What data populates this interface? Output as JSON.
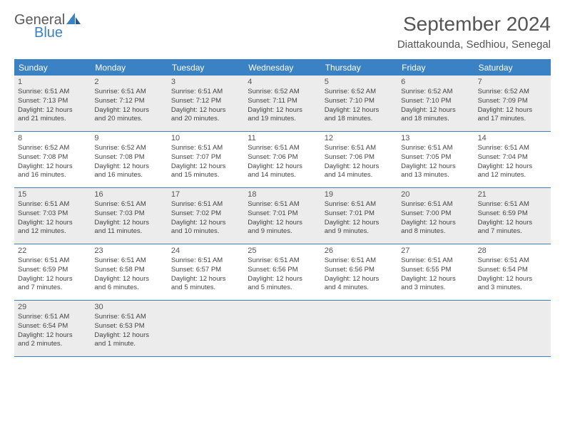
{
  "logo": {
    "general": "General",
    "blue": "Blue"
  },
  "title": "September 2024",
  "location": "Diattakounda, Sedhiou, Senegal",
  "colors": {
    "header_bg": "#3b82c4",
    "header_text": "#ffffff",
    "shade_bg": "#ececec",
    "text": "#555555",
    "border": "#3b82c4"
  },
  "day_names": [
    "Sunday",
    "Monday",
    "Tuesday",
    "Wednesday",
    "Thursday",
    "Friday",
    "Saturday"
  ],
  "weeks": [
    {
      "shaded": true,
      "days": [
        {
          "n": "1",
          "sr": "Sunrise: 6:51 AM",
          "ss": "Sunset: 7:13 PM",
          "d1": "Daylight: 12 hours",
          "d2": "and 21 minutes."
        },
        {
          "n": "2",
          "sr": "Sunrise: 6:51 AM",
          "ss": "Sunset: 7:12 PM",
          "d1": "Daylight: 12 hours",
          "d2": "and 20 minutes."
        },
        {
          "n": "3",
          "sr": "Sunrise: 6:51 AM",
          "ss": "Sunset: 7:12 PM",
          "d1": "Daylight: 12 hours",
          "d2": "and 20 minutes."
        },
        {
          "n": "4",
          "sr": "Sunrise: 6:52 AM",
          "ss": "Sunset: 7:11 PM",
          "d1": "Daylight: 12 hours",
          "d2": "and 19 minutes."
        },
        {
          "n": "5",
          "sr": "Sunrise: 6:52 AM",
          "ss": "Sunset: 7:10 PM",
          "d1": "Daylight: 12 hours",
          "d2": "and 18 minutes."
        },
        {
          "n": "6",
          "sr": "Sunrise: 6:52 AM",
          "ss": "Sunset: 7:10 PM",
          "d1": "Daylight: 12 hours",
          "d2": "and 18 minutes."
        },
        {
          "n": "7",
          "sr": "Sunrise: 6:52 AM",
          "ss": "Sunset: 7:09 PM",
          "d1": "Daylight: 12 hours",
          "d2": "and 17 minutes."
        }
      ]
    },
    {
      "shaded": false,
      "days": [
        {
          "n": "8",
          "sr": "Sunrise: 6:52 AM",
          "ss": "Sunset: 7:08 PM",
          "d1": "Daylight: 12 hours",
          "d2": "and 16 minutes."
        },
        {
          "n": "9",
          "sr": "Sunrise: 6:52 AM",
          "ss": "Sunset: 7:08 PM",
          "d1": "Daylight: 12 hours",
          "d2": "and 16 minutes."
        },
        {
          "n": "10",
          "sr": "Sunrise: 6:51 AM",
          "ss": "Sunset: 7:07 PM",
          "d1": "Daylight: 12 hours",
          "d2": "and 15 minutes."
        },
        {
          "n": "11",
          "sr": "Sunrise: 6:51 AM",
          "ss": "Sunset: 7:06 PM",
          "d1": "Daylight: 12 hours",
          "d2": "and 14 minutes."
        },
        {
          "n": "12",
          "sr": "Sunrise: 6:51 AM",
          "ss": "Sunset: 7:06 PM",
          "d1": "Daylight: 12 hours",
          "d2": "and 14 minutes."
        },
        {
          "n": "13",
          "sr": "Sunrise: 6:51 AM",
          "ss": "Sunset: 7:05 PM",
          "d1": "Daylight: 12 hours",
          "d2": "and 13 minutes."
        },
        {
          "n": "14",
          "sr": "Sunrise: 6:51 AM",
          "ss": "Sunset: 7:04 PM",
          "d1": "Daylight: 12 hours",
          "d2": "and 12 minutes."
        }
      ]
    },
    {
      "shaded": true,
      "days": [
        {
          "n": "15",
          "sr": "Sunrise: 6:51 AM",
          "ss": "Sunset: 7:03 PM",
          "d1": "Daylight: 12 hours",
          "d2": "and 12 minutes."
        },
        {
          "n": "16",
          "sr": "Sunrise: 6:51 AM",
          "ss": "Sunset: 7:03 PM",
          "d1": "Daylight: 12 hours",
          "d2": "and 11 minutes."
        },
        {
          "n": "17",
          "sr": "Sunrise: 6:51 AM",
          "ss": "Sunset: 7:02 PM",
          "d1": "Daylight: 12 hours",
          "d2": "and 10 minutes."
        },
        {
          "n": "18",
          "sr": "Sunrise: 6:51 AM",
          "ss": "Sunset: 7:01 PM",
          "d1": "Daylight: 12 hours",
          "d2": "and 9 minutes."
        },
        {
          "n": "19",
          "sr": "Sunrise: 6:51 AM",
          "ss": "Sunset: 7:01 PM",
          "d1": "Daylight: 12 hours",
          "d2": "and 9 minutes."
        },
        {
          "n": "20",
          "sr": "Sunrise: 6:51 AM",
          "ss": "Sunset: 7:00 PM",
          "d1": "Daylight: 12 hours",
          "d2": "and 8 minutes."
        },
        {
          "n": "21",
          "sr": "Sunrise: 6:51 AM",
          "ss": "Sunset: 6:59 PM",
          "d1": "Daylight: 12 hours",
          "d2": "and 7 minutes."
        }
      ]
    },
    {
      "shaded": false,
      "days": [
        {
          "n": "22",
          "sr": "Sunrise: 6:51 AM",
          "ss": "Sunset: 6:59 PM",
          "d1": "Daylight: 12 hours",
          "d2": "and 7 minutes."
        },
        {
          "n": "23",
          "sr": "Sunrise: 6:51 AM",
          "ss": "Sunset: 6:58 PM",
          "d1": "Daylight: 12 hours",
          "d2": "and 6 minutes."
        },
        {
          "n": "24",
          "sr": "Sunrise: 6:51 AM",
          "ss": "Sunset: 6:57 PM",
          "d1": "Daylight: 12 hours",
          "d2": "and 5 minutes."
        },
        {
          "n": "25",
          "sr": "Sunrise: 6:51 AM",
          "ss": "Sunset: 6:56 PM",
          "d1": "Daylight: 12 hours",
          "d2": "and 5 minutes."
        },
        {
          "n": "26",
          "sr": "Sunrise: 6:51 AM",
          "ss": "Sunset: 6:56 PM",
          "d1": "Daylight: 12 hours",
          "d2": "and 4 minutes."
        },
        {
          "n": "27",
          "sr": "Sunrise: 6:51 AM",
          "ss": "Sunset: 6:55 PM",
          "d1": "Daylight: 12 hours",
          "d2": "and 3 minutes."
        },
        {
          "n": "28",
          "sr": "Sunrise: 6:51 AM",
          "ss": "Sunset: 6:54 PM",
          "d1": "Daylight: 12 hours",
          "d2": "and 3 minutes."
        }
      ]
    },
    {
      "shaded": true,
      "days": [
        {
          "n": "29",
          "sr": "Sunrise: 6:51 AM",
          "ss": "Sunset: 6:54 PM",
          "d1": "Daylight: 12 hours",
          "d2": "and 2 minutes."
        },
        {
          "n": "30",
          "sr": "Sunrise: 6:51 AM",
          "ss": "Sunset: 6:53 PM",
          "d1": "Daylight: 12 hours",
          "d2": "and 1 minute."
        },
        null,
        null,
        null,
        null,
        null
      ]
    }
  ]
}
